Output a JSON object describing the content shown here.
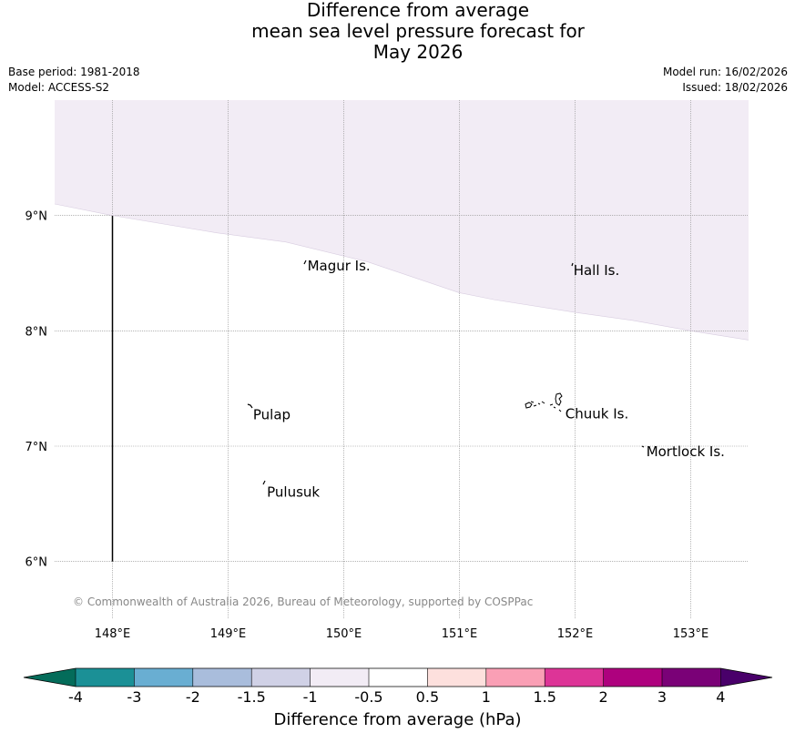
{
  "title": {
    "line1": "Difference from average",
    "line2": "mean sea level pressure forecast for",
    "line3": "May 2026"
  },
  "meta": {
    "base_period": "Base period: 1981-2018",
    "model": "Model: ACCESS-S2",
    "model_run": "Model run: 16/02/2026",
    "issued": "Issued: 18/02/2026"
  },
  "map": {
    "extent": {
      "lon_min": 147.5,
      "lon_max": 153.5,
      "lat_min": 5.5,
      "lat_max": 10.0
    },
    "lat_ticks": [
      {
        "value": 9,
        "label": "9°N"
      },
      {
        "value": 8,
        "label": "8°N"
      },
      {
        "value": 7,
        "label": "7°N"
      },
      {
        "value": 6,
        "label": "6°N"
      }
    ],
    "lon_ticks": [
      {
        "value": 148,
        "label": "148°E"
      },
      {
        "value": 149,
        "label": "149°E"
      },
      {
        "value": 150,
        "label": "150°E"
      },
      {
        "value": 151,
        "label": "151°E"
      },
      {
        "value": 152,
        "label": "152°E"
      },
      {
        "value": 153,
        "label": "153°E"
      }
    ],
    "region_boundary": {
      "lon": 148,
      "lat_from": 6,
      "lat_to": 9
    },
    "shaded_region": {
      "category": "-1 to -0.5",
      "color": "#f2ecf5",
      "southern_edge": [
        {
          "lon": 147.5,
          "lat": 9.1
        },
        {
          "lon": 148.0,
          "lat": 9.0
        },
        {
          "lon": 148.9,
          "lat": 8.85
        },
        {
          "lon": 149.5,
          "lat": 8.77
        },
        {
          "lon": 150.2,
          "lat": 8.6
        },
        {
          "lon": 151.0,
          "lat": 8.33
        },
        {
          "lon": 151.3,
          "lat": 8.27
        },
        {
          "lon": 152.0,
          "lat": 8.16
        },
        {
          "lon": 152.5,
          "lat": 8.09
        },
        {
          "lon": 153.0,
          "lat": 8.0
        },
        {
          "lon": 153.5,
          "lat": 7.92
        }
      ]
    },
    "places": [
      {
        "name": "Magur Is.",
        "lon": 149.67,
        "lat": 8.57
      },
      {
        "name": "Hall Is.",
        "lon": 151.97,
        "lat": 8.53
      },
      {
        "name": "Pulap",
        "lon": 149.2,
        "lat": 7.28
      },
      {
        "name": "Chuuk Is.",
        "lon": 151.9,
        "lat": 7.29
      },
      {
        "name": "Mortlock Is.",
        "lon": 152.6,
        "lat": 6.96
      },
      {
        "name": "Pulusuk",
        "lon": 149.32,
        "lat": 6.61
      }
    ],
    "copyright": "© Commonwealth of Australia 2026, Bureau of Meteorology, supported by COSPPac"
  },
  "colorbar": {
    "label": "Difference from average (hPa)",
    "ticks": [
      "-4",
      "-3",
      "-2",
      "-1.5",
      "-1",
      "-0.5",
      "0.5",
      "1",
      "1.5",
      "2",
      "3",
      "4"
    ],
    "colors": [
      "#1b9096",
      "#69aed2",
      "#a9bddc",
      "#d0d1e6",
      "#f2ecf5",
      "#ffffff",
      "#fde0dd",
      "#fa9fb5",
      "#dd3497",
      "#ae017e",
      "#7a0177"
    ],
    "under_color": "#046c5a",
    "over_color": "#49006a"
  }
}
